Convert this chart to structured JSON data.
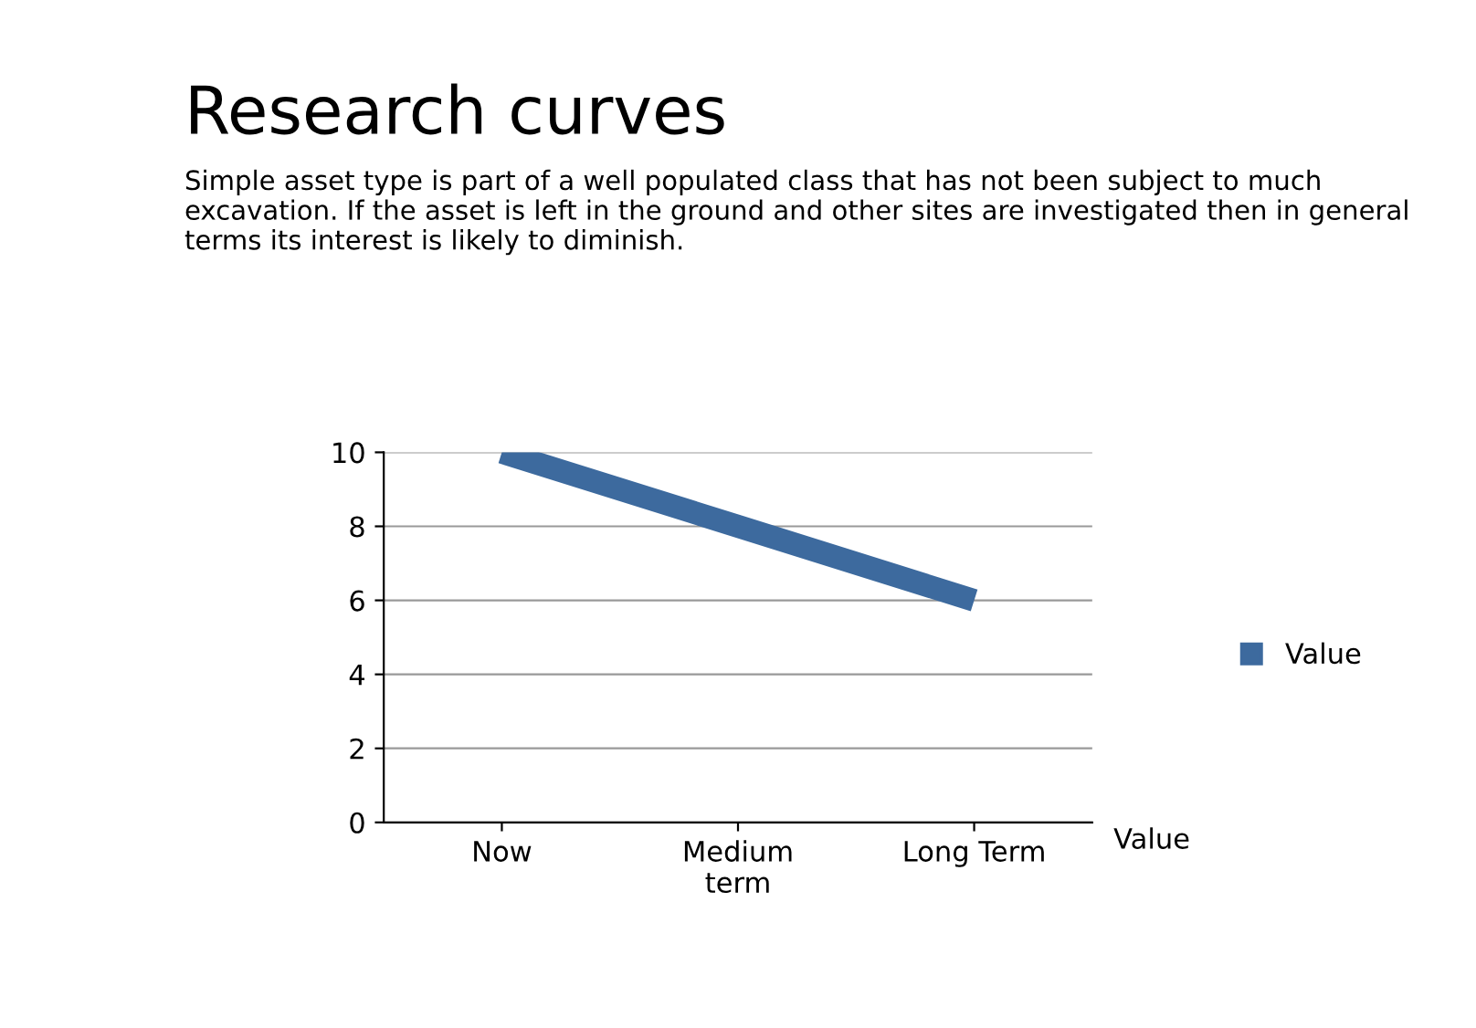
{
  "chart_data": {
    "type": "line",
    "title": "Research curves",
    "subtitle": "Simple asset type is part of a well populated class that has not been subject to much excavation. If the asset is left in the ground and other sites are investigated then in general terms its interest is likely to diminish.",
    "categories": [
      "Now",
      "Medium\nterm",
      "Long Term"
    ],
    "series": [
      {
        "name": "Value",
        "color": "#3d6a9e",
        "values": [
          10,
          8,
          6
        ]
      }
    ],
    "ylim": [
      0,
      10
    ],
    "yticks": [
      0,
      2,
      4,
      6,
      8,
      10
    ],
    "grid": "y",
    "legend": "right",
    "marker": "none",
    "line_style": "solid",
    "annotations": [
      "Value"
    ]
  }
}
